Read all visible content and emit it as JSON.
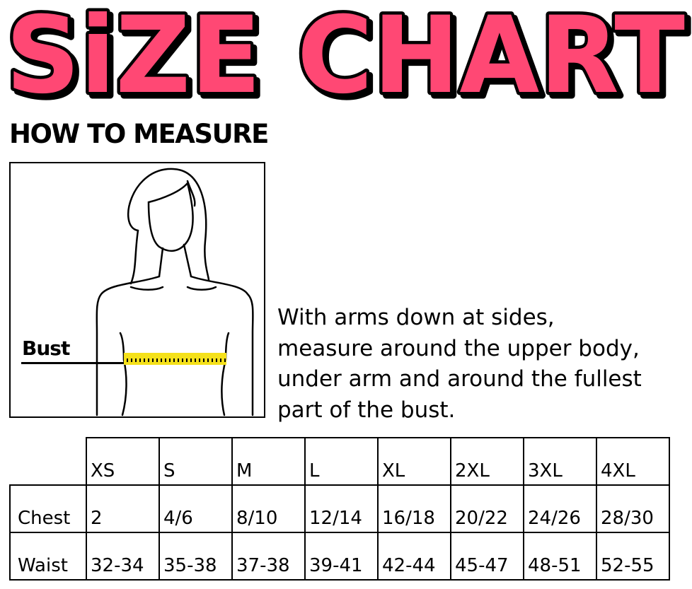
{
  "title": "SiZE CHART",
  "title_color": "#ff4874",
  "how_to_measure": "HOW TO MEASURE",
  "figure": {
    "bust_label": "Bust",
    "tape_color": "#f5e11a"
  },
  "instructions": [
    "With arms down at sides,",
    "measure around the upper body,",
    "under arm and around the fullest",
    "part of the bust."
  ],
  "table": {
    "sizes": [
      "XS",
      "S",
      "M",
      "L",
      "XL",
      "2XL",
      "3XL",
      "4XL"
    ],
    "rows": [
      {
        "label": "Chest",
        "values": [
          "2",
          "4/6",
          "8/10",
          "12/14",
          "16/18",
          "20/22",
          "24/26",
          "28/30"
        ]
      },
      {
        "label": "Waist",
        "values": [
          "32-34",
          "35-38",
          "37-38",
          "39-41",
          "42-44",
          "45-47",
          "48-51",
          "52-55"
        ]
      }
    ]
  }
}
